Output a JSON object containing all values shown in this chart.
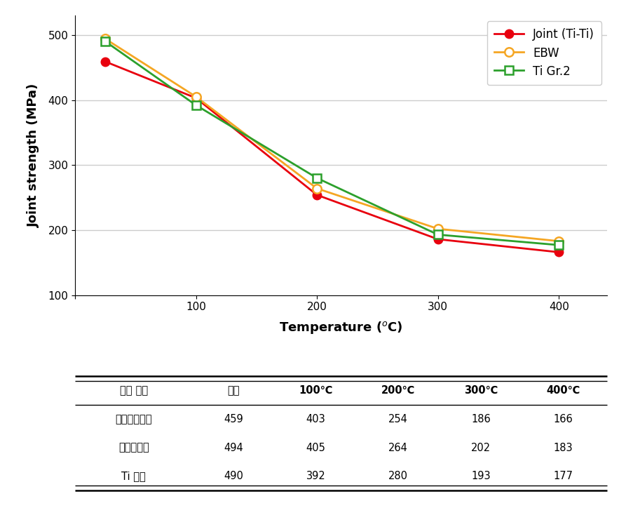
{
  "x_values": [
    25,
    100,
    200,
    300,
    400
  ],
  "series": [
    {
      "label": "Joint (Ti-Ti)",
      "values": [
        459,
        403,
        254,
        186,
        166
      ],
      "color": "#e8000e",
      "marker": "o",
      "marker_filled": true,
      "linewidth": 2.0
    },
    {
      "label": "EBW",
      "values": [
        494,
        405,
        264,
        202,
        183
      ],
      "color": "#f5a623",
      "marker": "o",
      "marker_filled": false,
      "linewidth": 2.0
    },
    {
      "label": "Ti Gr.2",
      "values": [
        490,
        392,
        280,
        193,
        177
      ],
      "color": "#2ca02c",
      "marker": "s",
      "marker_filled": false,
      "linewidth": 2.0
    }
  ],
  "ylabel": "Joint strength (MPa)",
  "xlim": [
    0,
    440
  ],
  "ylim": [
    100,
    530
  ],
  "yticks": [
    100,
    200,
    300,
    400,
    500
  ],
  "xticks": [
    0,
    100,
    200,
    300,
    400
  ],
  "xtick_labels": [
    "",
    "100",
    "200",
    "300",
    "400"
  ],
  "grid_color": "#cccccc",
  "background_color": "#ffffff",
  "table_headers": [
    "접합 공정",
    "상온",
    "100℃",
    "200℃",
    "300℃",
    "400℃"
  ],
  "table_rows": [
    [
      "저온고상접합",
      "459",
      "403",
      "254",
      "186",
      "166"
    ],
    [
      "전자빔용접",
      "494",
      "405",
      "264",
      "202",
      "183"
    ],
    [
      "Ti 모재",
      "490",
      "392",
      "280",
      "193",
      "177"
    ]
  ],
  "marker_size": 9,
  "legend_fontsize": 12,
  "axis_label_fontsize": 13,
  "tick_fontsize": 11,
  "table_fontsize": 10.5,
  "col_widths": [
    0.22,
    0.155,
    0.155,
    0.155,
    0.155,
    0.155
  ]
}
